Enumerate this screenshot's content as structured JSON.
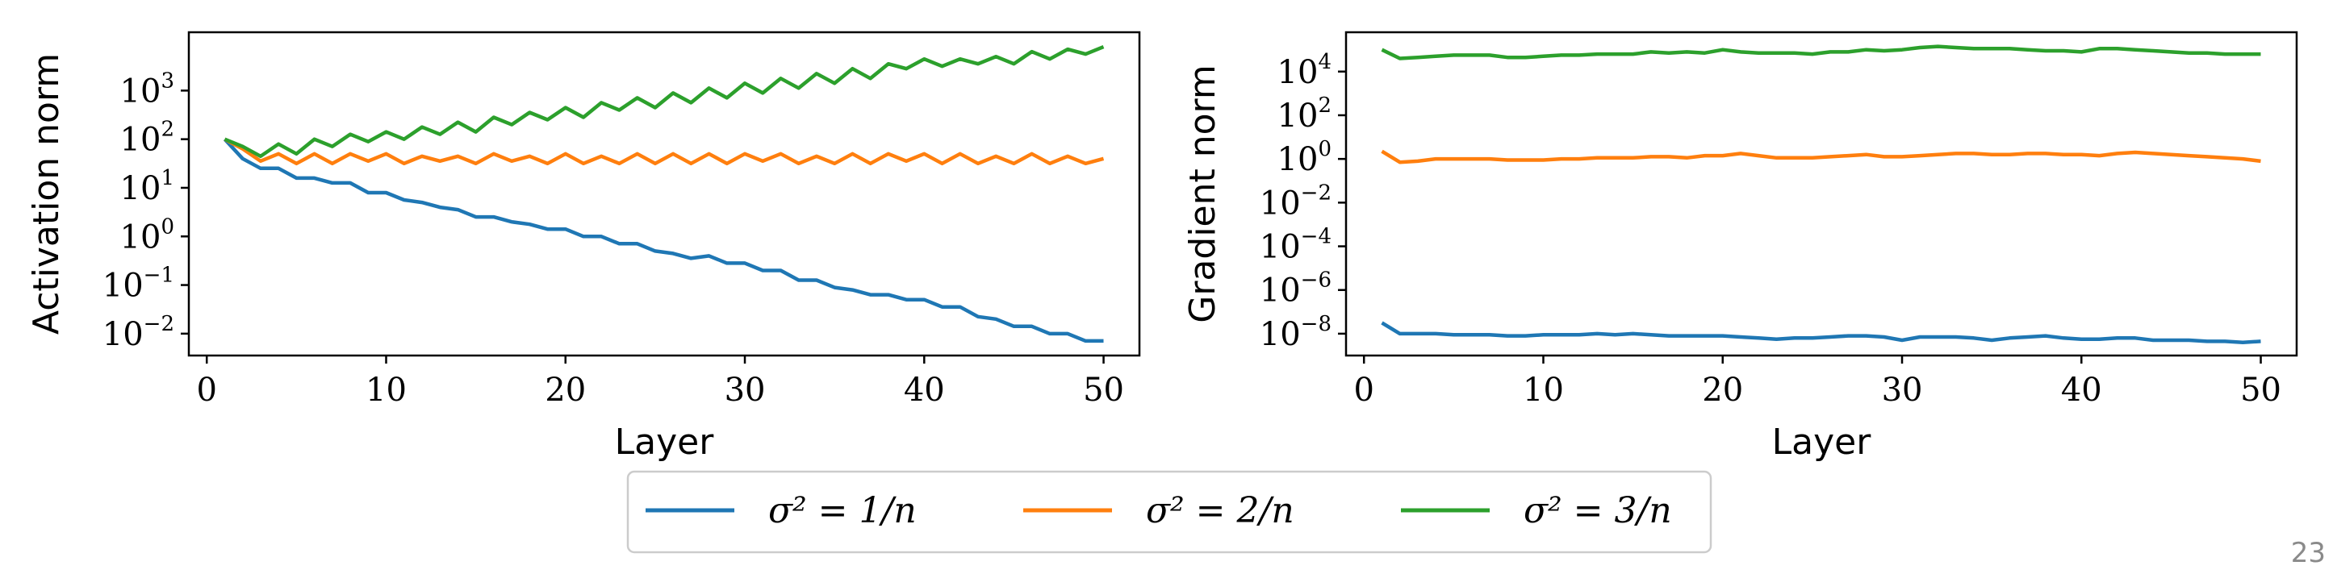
{
  "page_number": "23",
  "chart_data": [
    {
      "type": "line",
      "yscale": "log",
      "xlabel": "Layer",
      "ylabel": "Activation norm",
      "xlim": [
        -1,
        52
      ],
      "ylim_log10": [
        -2.45,
        4.2
      ],
      "xticks": [
        0,
        10,
        20,
        30,
        40,
        50
      ],
      "yticks": [
        {
          "base": "10",
          "exp": "−2",
          "log10": -2
        },
        {
          "base": "10",
          "exp": "−1",
          "log10": -1
        },
        {
          "base": "10",
          "exp": "0",
          "log10": 0
        },
        {
          "base": "10",
          "exp": "1",
          "log10": 1
        },
        {
          "base": "10",
          "exp": "2",
          "log10": 2
        },
        {
          "base": "10",
          "exp": "3",
          "log10": 3
        }
      ],
      "series": [
        {
          "name": "σ² = 1/n",
          "color": "#1f77b4",
          "x_start": 1,
          "x_step": 1,
          "log10_values": [
            2.0,
            1.6,
            1.4,
            1.4,
            1.2,
            1.2,
            1.1,
            1.1,
            0.9,
            0.9,
            0.75,
            0.7,
            0.6,
            0.55,
            0.4,
            0.4,
            0.3,
            0.25,
            0.15,
            0.15,
            0.0,
            0.0,
            -0.15,
            -0.15,
            -0.3,
            -0.35,
            -0.45,
            -0.4,
            -0.55,
            -0.55,
            -0.7,
            -0.7,
            -0.9,
            -0.9,
            -1.05,
            -1.1,
            -1.2,
            -1.2,
            -1.3,
            -1.3,
            -1.45,
            -1.45,
            -1.65,
            -1.7,
            -1.85,
            -1.85,
            -2.0,
            -2.0,
            -2.15,
            -2.15
          ]
        },
        {
          "name": "σ² = 2/n",
          "color": "#ff7f0e",
          "x_start": 1,
          "x_step": 1,
          "log10_values": [
            2.0,
            1.8,
            1.55,
            1.7,
            1.5,
            1.7,
            1.5,
            1.7,
            1.55,
            1.7,
            1.5,
            1.65,
            1.55,
            1.65,
            1.5,
            1.7,
            1.55,
            1.65,
            1.5,
            1.7,
            1.5,
            1.65,
            1.5,
            1.7,
            1.5,
            1.7,
            1.5,
            1.7,
            1.5,
            1.7,
            1.55,
            1.7,
            1.5,
            1.65,
            1.5,
            1.7,
            1.5,
            1.7,
            1.55,
            1.7,
            1.5,
            1.7,
            1.5,
            1.65,
            1.5,
            1.7,
            1.5,
            1.65,
            1.5,
            1.6
          ]
        },
        {
          "name": "σ² = 3/n",
          "color": "#2ca02c",
          "x_start": 1,
          "x_step": 1,
          "log10_values": [
            2.0,
            1.85,
            1.65,
            1.9,
            1.7,
            2.0,
            1.85,
            2.1,
            1.95,
            2.15,
            2.0,
            2.25,
            2.1,
            2.35,
            2.15,
            2.45,
            2.3,
            2.55,
            2.4,
            2.65,
            2.45,
            2.75,
            2.6,
            2.85,
            2.65,
            2.95,
            2.75,
            3.05,
            2.85,
            3.15,
            2.95,
            3.25,
            3.05,
            3.35,
            3.15,
            3.45,
            3.25,
            3.55,
            3.45,
            3.65,
            3.5,
            3.65,
            3.55,
            3.7,
            3.55,
            3.8,
            3.65,
            3.85,
            3.75,
            3.9
          ]
        }
      ]
    },
    {
      "type": "line",
      "yscale": "log",
      "xlabel": "Layer",
      "ylabel": "Gradient norm",
      "xlim": [
        -1,
        52
      ],
      "ylim_log10": [
        -9.0,
        5.8
      ],
      "xticks": [
        0,
        10,
        20,
        30,
        40,
        50
      ],
      "yticks": [
        {
          "base": "10",
          "exp": "−8",
          "log10": -8
        },
        {
          "base": "10",
          "exp": "−6",
          "log10": -6
        },
        {
          "base": "10",
          "exp": "−4",
          "log10": -4
        },
        {
          "base": "10",
          "exp": "−2",
          "log10": -2
        },
        {
          "base": "10",
          "exp": "0",
          "log10": 0
        },
        {
          "base": "10",
          "exp": "2",
          "log10": 2
        },
        {
          "base": "10",
          "exp": "4",
          "log10": 4
        }
      ],
      "series": [
        {
          "name": "σ² = 1/n",
          "color": "#1f77b4",
          "x_start": 1,
          "x_step": 1,
          "log10_values": [
            -7.5,
            -8.0,
            -8.0,
            -8.0,
            -8.05,
            -8.05,
            -8.05,
            -8.1,
            -8.1,
            -8.05,
            -8.05,
            -8.05,
            -8.0,
            -8.05,
            -8.0,
            -8.05,
            -8.1,
            -8.1,
            -8.1,
            -8.1,
            -8.15,
            -8.2,
            -8.25,
            -8.2,
            -8.2,
            -8.15,
            -8.1,
            -8.1,
            -8.15,
            -8.3,
            -8.15,
            -8.15,
            -8.15,
            -8.2,
            -8.3,
            -8.2,
            -8.15,
            -8.1,
            -8.2,
            -8.25,
            -8.25,
            -8.2,
            -8.2,
            -8.3,
            -8.3,
            -8.3,
            -8.35,
            -8.35,
            -8.4,
            -8.35
          ]
        },
        {
          "name": "σ² = 2/n",
          "color": "#ff7f0e",
          "x_start": 1,
          "x_step": 1,
          "log10_values": [
            0.35,
            -0.15,
            -0.1,
            0.0,
            0.0,
            0.0,
            0.0,
            -0.05,
            -0.05,
            -0.05,
            0.0,
            0.0,
            0.05,
            0.05,
            0.05,
            0.1,
            0.1,
            0.05,
            0.15,
            0.15,
            0.25,
            0.15,
            0.05,
            0.05,
            0.05,
            0.1,
            0.15,
            0.2,
            0.1,
            0.1,
            0.15,
            0.2,
            0.25,
            0.25,
            0.2,
            0.2,
            0.25,
            0.25,
            0.2,
            0.2,
            0.15,
            0.25,
            0.3,
            0.25,
            0.2,
            0.15,
            0.1,
            0.05,
            0.0,
            -0.1
          ]
        },
        {
          "name": "σ² = 3/n",
          "color": "#2ca02c",
          "x_start": 1,
          "x_step": 1,
          "log10_values": [
            5.0,
            4.6,
            4.65,
            4.7,
            4.75,
            4.75,
            4.75,
            4.65,
            4.65,
            4.7,
            4.75,
            4.75,
            4.8,
            4.8,
            4.8,
            4.9,
            4.85,
            4.9,
            4.85,
            5.0,
            4.9,
            4.85,
            4.85,
            4.85,
            4.8,
            4.9,
            4.9,
            5.0,
            4.95,
            5.0,
            5.1,
            5.15,
            5.1,
            5.05,
            5.05,
            5.05,
            5.0,
            4.95,
            4.95,
            4.9,
            5.05,
            5.05,
            5.0,
            4.95,
            4.9,
            4.85,
            4.85,
            4.8,
            4.8,
            4.8
          ]
        }
      ]
    }
  ],
  "legend": {
    "position": "bottom-center",
    "entries": [
      {
        "label": "σ² = 1/n",
        "color": "#1f77b4"
      },
      {
        "label": "σ² = 2/n",
        "color": "#ff7f0e"
      },
      {
        "label": "σ² = 3/n",
        "color": "#2ca02c"
      }
    ]
  }
}
